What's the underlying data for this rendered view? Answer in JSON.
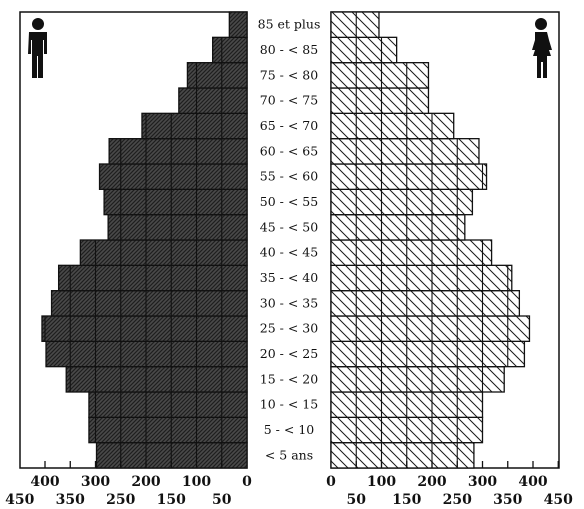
{
  "chart_data": {
    "type": "bar",
    "title": "",
    "xlabel": "",
    "ylabel": "",
    "categories": [
      "< 5 ans",
      "5 - < 10",
      "10 - < 15",
      "15 - < 20",
      "20 - < 25",
      "25 - < 30",
      "30 - < 35",
      "35 - < 40",
      "40 - < 45",
      "45 - < 50",
      "50 - < 55",
      "55 - < 60",
      "60 - < 65",
      "65 - < 70",
      "70 - < 75",
      "75 - < 80",
      "80 - < 85",
      "85 et plus"
    ],
    "series": [
      {
        "values": [
          298,
          313,
          313,
          358,
          398,
          406,
          387,
          373,
          330,
          275,
          283,
          292,
          273,
          208,
          135,
          118,
          68,
          35
        ]
      },
      {
        "values": [
          283,
          300,
          300,
          343,
          383,
          393,
          373,
          358,
          318,
          265,
          280,
          308,
          293,
          243,
          193,
          193,
          130,
          95
        ]
      }
    ],
    "left_axis": {
      "ticks_upper": [
        400,
        300,
        200,
        100,
        0
      ],
      "ticks_lower": [
        450,
        350,
        250,
        150,
        50
      ],
      "range": [
        0,
        450
      ]
    },
    "right_axis": {
      "ticks_upper": [
        0,
        100,
        200,
        300,
        400
      ],
      "ticks_lower": [
        50,
        150,
        250,
        350,
        450
      ],
      "range": [
        0,
        450
      ]
    },
    "grid": true,
    "legend": {
      "left": "male-icon",
      "right": "female-icon"
    }
  }
}
